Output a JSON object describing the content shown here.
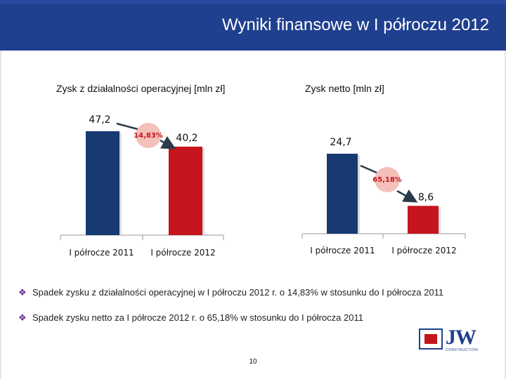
{
  "header": {
    "title": "Wyniki finansowe w I półroczu 2012"
  },
  "chart_data": [
    {
      "type": "bar",
      "title": "Zysk z działalności operacyjnej [mln zł]",
      "categories": [
        "I półrocze 2011",
        "I półrocze 2012"
      ],
      "values": [
        47.2,
        40.2
      ],
      "value_labels": [
        "47,2",
        "40,2"
      ],
      "colors": [
        "#173a73",
        "#c4161c"
      ],
      "change_label": "14,83%",
      "ylim": [
        0,
        47.2
      ],
      "grid": false
    },
    {
      "type": "bar",
      "title": "Zysk netto [mln zł]",
      "categories": [
        "I półrocze 2011",
        "I półrocze 2012"
      ],
      "values": [
        24.7,
        8.6
      ],
      "value_labels": [
        "24,7",
        "8,6"
      ],
      "colors": [
        "#173a73",
        "#c4161c"
      ],
      "change_label": "65,18%",
      "ylim": [
        0,
        24.7
      ],
      "grid": false
    }
  ],
  "bullets": [
    "Spadek zysku z działalności operacyjnej w I półroczu 2012 r. o 14,83% w stosunku do I półrocza 2011",
    "Spadek zysku netto za I półrocze 2012 r. o 65,18% w stosunku do I półrocza 2011"
  ],
  "bullet_symbol": "❖",
  "page_number": "10",
  "logo": {
    "text": "JW",
    "subtext": "CONSTRUCTION"
  }
}
